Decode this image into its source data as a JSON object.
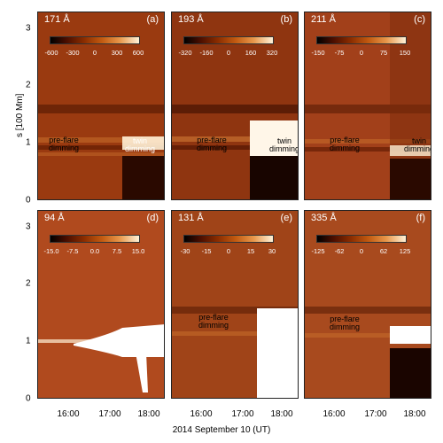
{
  "figure": {
    "y_axis_label": "s [100 Mm]",
    "y_ticks": [
      "0",
      "1",
      "2",
      "3"
    ],
    "x_ticks": [
      "16:00",
      "17:00",
      "18:00"
    ],
    "x_axis_title": "2014 September 10 (UT)",
    "panels": [
      {
        "id": "a",
        "wavelength": "171 Å",
        "letter": "(a)",
        "colorbar_ticks": [
          "-600",
          "-300",
          "0",
          "300",
          "600"
        ],
        "annotations": [
          "pre-flare\ndimming",
          "twin\ndimming"
        ]
      },
      {
        "id": "b",
        "wavelength": "193 Å",
        "letter": "(b)",
        "colorbar_ticks": [
          "-320",
          "-160",
          "0",
          "160",
          "320"
        ],
        "annotations": [
          "pre-flare\ndimming",
          "twin\ndimming"
        ]
      },
      {
        "id": "c",
        "wavelength": "211 Å",
        "letter": "(c)",
        "colorbar_ticks": [
          "-150",
          "-75",
          "0",
          "75",
          "150"
        ],
        "annotations": [
          "pre-flare\ndimming",
          "twin\ndimming"
        ]
      },
      {
        "id": "d",
        "wavelength": "94 Å",
        "letter": "(d)",
        "colorbar_ticks": [
          "-15.0",
          "-7.5",
          "0.0",
          "7.5",
          "15.0"
        ],
        "annotations": []
      },
      {
        "id": "e",
        "wavelength": "131 Å",
        "letter": "(e)",
        "colorbar_ticks": [
          "-30",
          "-15",
          "0",
          "15",
          "30"
        ],
        "annotations": [
          "pre-flare\ndimming"
        ]
      },
      {
        "id": "f",
        "wavelength": "335 Å",
        "letter": "(f)",
        "colorbar_ticks": [
          "-125",
          "-62",
          "0",
          "62",
          "125"
        ],
        "annotations": [
          "pre-flare\ndimming"
        ]
      }
    ]
  },
  "colors": {
    "background": "#9a3a10",
    "dark_band": "#3a0e00",
    "bright": "#fff6e8"
  }
}
